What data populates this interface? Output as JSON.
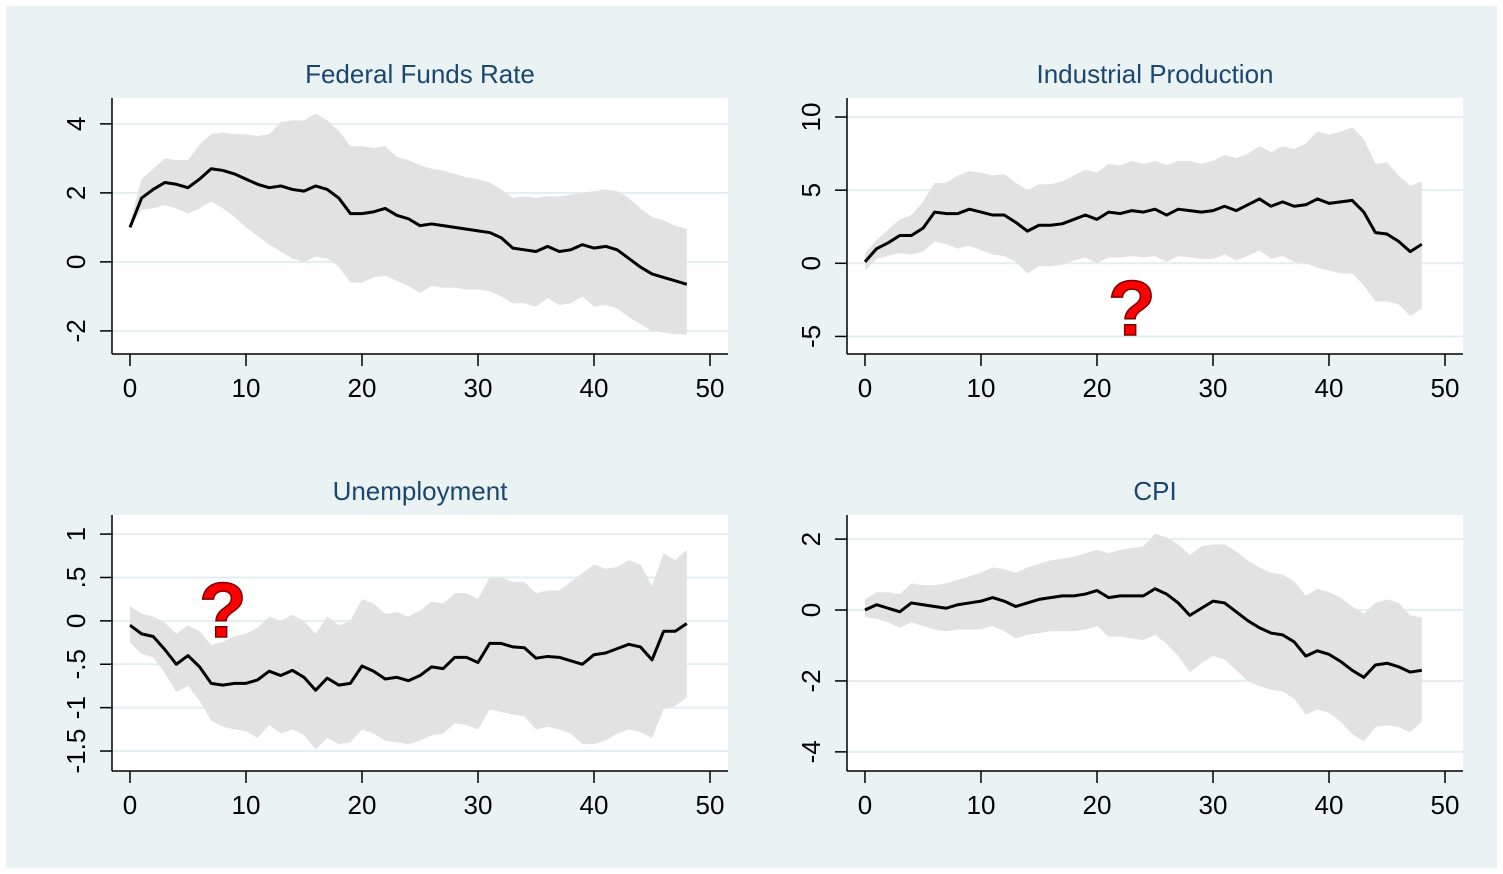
{
  "chart_data": [
    {
      "type": "line",
      "title": "Federal Funds Rate",
      "x": [
        0,
        1,
        2,
        3,
        4,
        5,
        6,
        7,
        8,
        9,
        10,
        11,
        12,
        13,
        14,
        15,
        16,
        17,
        18,
        19,
        20,
        21,
        22,
        23,
        24,
        25,
        26,
        27,
        28,
        29,
        30,
        31,
        32,
        33,
        34,
        35,
        36,
        37,
        38,
        39,
        40,
        41,
        42,
        43,
        44,
        45,
        46,
        47,
        48
      ],
      "series": [
        {
          "color": "#000000",
          "values": [
            1.0,
            1.85,
            2.1,
            2.3,
            2.25,
            2.15,
            2.4,
            2.7,
            2.65,
            2.55,
            2.4,
            2.25,
            2.15,
            2.2,
            2.1,
            2.05,
            2.2,
            2.1,
            1.85,
            1.4,
            1.4,
            1.45,
            1.55,
            1.35,
            1.25,
            1.05,
            1.1,
            1.05,
            1.0,
            0.95,
            0.9,
            0.85,
            0.7,
            0.4,
            0.35,
            0.3,
            0.45,
            0.3,
            0.35,
            0.5,
            0.4,
            0.45,
            0.35,
            0.1,
            -0.15,
            -0.35,
            -0.45,
            -0.55,
            -0.65
          ]
        }
      ],
      "band": {
        "color": "#e2e2e2",
        "upper": [
          1.1,
          2.4,
          2.7,
          3.0,
          2.95,
          2.95,
          3.4,
          3.7,
          3.75,
          3.7,
          3.7,
          3.65,
          3.7,
          4.05,
          4.1,
          4.1,
          4.3,
          4.1,
          3.8,
          3.35,
          3.35,
          3.3,
          3.35,
          3.05,
          2.95,
          2.8,
          2.7,
          2.65,
          2.55,
          2.45,
          2.4,
          2.3,
          2.1,
          1.85,
          1.9,
          1.85,
          1.9,
          1.9,
          1.95,
          2.0,
          2.05,
          2.1,
          2.05,
          1.85,
          1.55,
          1.3,
          1.2,
          1.05,
          0.95
        ],
        "lower": [
          1.0,
          1.5,
          1.55,
          1.65,
          1.55,
          1.4,
          1.55,
          1.75,
          1.55,
          1.3,
          1.0,
          0.75,
          0.5,
          0.3,
          0.1,
          0.0,
          0.15,
          0.1,
          -0.15,
          -0.6,
          -0.6,
          -0.45,
          -0.4,
          -0.55,
          -0.7,
          -0.9,
          -0.7,
          -0.75,
          -0.75,
          -0.8,
          -0.8,
          -0.85,
          -1.0,
          -1.2,
          -1.2,
          -1.3,
          -1.05,
          -1.25,
          -1.2,
          -1.0,
          -1.3,
          -1.25,
          -1.35,
          -1.6,
          -1.8,
          -2.0,
          -2.05,
          -2.1,
          -2.1
        ]
      },
      "xlim": [
        -1.55,
        51.55
      ],
      "xticks": [
        0,
        10,
        20,
        30,
        40,
        50
      ],
      "ylim": [
        -2.67,
        4.75
      ],
      "yticks": [
        -2,
        0,
        2,
        4
      ],
      "grid": true
    },
    {
      "type": "line",
      "title": "Industrial Production",
      "x": [
        0,
        1,
        2,
        3,
        4,
        5,
        6,
        7,
        8,
        9,
        10,
        11,
        12,
        13,
        14,
        15,
        16,
        17,
        18,
        19,
        20,
        21,
        22,
        23,
        24,
        25,
        26,
        27,
        28,
        29,
        30,
        31,
        32,
        33,
        34,
        35,
        36,
        37,
        38,
        39,
        40,
        41,
        42,
        43,
        44,
        45,
        46,
        47,
        48
      ],
      "series": [
        {
          "color": "#000000",
          "values": [
            0.1,
            1.0,
            1.4,
            1.9,
            1.9,
            2.4,
            3.5,
            3.4,
            3.4,
            3.7,
            3.5,
            3.3,
            3.3,
            2.8,
            2.2,
            2.6,
            2.6,
            2.7,
            3.0,
            3.3,
            3.0,
            3.5,
            3.4,
            3.6,
            3.5,
            3.7,
            3.3,
            3.7,
            3.6,
            3.5,
            3.6,
            3.9,
            3.6,
            4.0,
            4.4,
            3.9,
            4.2,
            3.9,
            4.0,
            4.4,
            4.1,
            4.2,
            4.3,
            3.5,
            2.1,
            2.0,
            1.5,
            0.8,
            1.3
          ]
        }
      ],
      "band": {
        "color": "#e2e2e2",
        "upper": [
          0.7,
          1.6,
          2.3,
          3.0,
          3.3,
          4.2,
          5.5,
          5.5,
          6.0,
          6.3,
          6.2,
          6.0,
          6.1,
          5.5,
          5.0,
          5.4,
          5.4,
          5.6,
          6.0,
          6.4,
          6.2,
          6.8,
          6.7,
          7.0,
          6.8,
          7.0,
          6.7,
          7.0,
          7.0,
          6.8,
          7.0,
          7.4,
          7.2,
          7.5,
          8.0,
          7.6,
          8.0,
          7.8,
          8.2,
          9.0,
          8.8,
          9.0,
          9.3,
          8.5,
          6.8,
          6.9,
          6.0,
          5.3,
          5.6
        ],
        "lower": [
          -0.5,
          0.3,
          0.5,
          0.7,
          0.6,
          0.8,
          1.5,
          1.3,
          1.0,
          1.2,
          0.9,
          0.6,
          0.5,
          0.1,
          -0.7,
          -0.2,
          -0.2,
          -0.1,
          0.2,
          0.4,
          0.0,
          0.4,
          0.4,
          0.5,
          0.4,
          0.5,
          0.1,
          0.5,
          0.4,
          0.3,
          0.3,
          0.6,
          0.2,
          0.5,
          0.9,
          0.3,
          0.5,
          0.1,
          0.0,
          -0.3,
          -0.5,
          -0.7,
          -0.7,
          -1.5,
          -2.6,
          -2.6,
          -2.8,
          -3.6,
          -3.1
        ]
      },
      "xlim": [
        -1.55,
        51.55
      ],
      "xticks": [
        0,
        10,
        20,
        30,
        40,
        50
      ],
      "ylim": [
        -6.2,
        11.3
      ],
      "yticks": [
        -5,
        0,
        5,
        10
      ],
      "grid": true,
      "annotations": [
        {
          "text": "?",
          "x": 23,
          "y": -3.5,
          "color": "#ff0000"
        }
      ]
    },
    {
      "type": "line",
      "title": "Unemployment",
      "x": [
        0,
        1,
        2,
        3,
        4,
        5,
        6,
        7,
        8,
        9,
        10,
        11,
        12,
        13,
        14,
        15,
        16,
        17,
        18,
        19,
        20,
        21,
        22,
        23,
        24,
        25,
        26,
        27,
        28,
        29,
        30,
        31,
        32,
        33,
        34,
        35,
        36,
        37,
        38,
        39,
        40,
        41,
        42,
        43,
        44,
        45,
        46,
        47,
        48
      ],
      "series": [
        {
          "color": "#000000",
          "values": [
            -0.05,
            -0.15,
            -0.18,
            -0.33,
            -0.5,
            -0.4,
            -0.53,
            -0.72,
            -0.74,
            -0.72,
            -0.72,
            -0.68,
            -0.58,
            -0.63,
            -0.57,
            -0.65,
            -0.8,
            -0.66,
            -0.74,
            -0.72,
            -0.52,
            -0.58,
            -0.67,
            -0.65,
            -0.69,
            -0.63,
            -0.53,
            -0.55,
            -0.42,
            -0.42,
            -0.48,
            -0.26,
            -0.26,
            -0.3,
            -0.31,
            -0.43,
            -0.41,
            -0.42,
            -0.46,
            -0.5,
            -0.39,
            -0.37,
            -0.32,
            -0.27,
            -0.3,
            -0.45,
            -0.12,
            -0.12,
            -0.03
          ]
        }
      ],
      "band": {
        "color": "#e2e2e2",
        "upper": [
          0.17,
          0.08,
          0.05,
          -0.02,
          -0.15,
          -0.05,
          -0.12,
          -0.28,
          -0.24,
          -0.18,
          -0.15,
          -0.08,
          0.05,
          0.0,
          0.07,
          0.0,
          -0.15,
          0.05,
          -0.05,
          0.0,
          0.25,
          0.2,
          0.08,
          0.1,
          0.05,
          0.12,
          0.22,
          0.2,
          0.32,
          0.32,
          0.25,
          0.5,
          0.5,
          0.45,
          0.45,
          0.32,
          0.35,
          0.35,
          0.45,
          0.55,
          0.65,
          0.6,
          0.62,
          0.7,
          0.65,
          0.4,
          0.78,
          0.7,
          0.82
        ],
        "lower": [
          -0.25,
          -0.38,
          -0.42,
          -0.6,
          -0.82,
          -0.75,
          -0.92,
          -1.15,
          -1.22,
          -1.25,
          -1.27,
          -1.35,
          -1.2,
          -1.3,
          -1.25,
          -1.32,
          -1.48,
          -1.35,
          -1.42,
          -1.4,
          -1.25,
          -1.3,
          -1.38,
          -1.4,
          -1.42,
          -1.38,
          -1.32,
          -1.3,
          -1.18,
          -1.2,
          -1.25,
          -1.02,
          -1.05,
          -1.08,
          -1.1,
          -1.25,
          -1.22,
          -1.25,
          -1.3,
          -1.42,
          -1.42,
          -1.38,
          -1.3,
          -1.25,
          -1.28,
          -1.35,
          -1.02,
          -0.98,
          -0.88
        ]
      },
      "xlim": [
        -1.55,
        51.55
      ],
      "xticks": [
        0,
        10,
        20,
        30,
        40,
        50
      ],
      "ylim": [
        -1.73,
        1.22
      ],
      "yticks": [
        {
          "value": -1.5,
          "label": "-1.5"
        },
        -1,
        {
          "value": -0.5,
          "label": "-.5"
        },
        0,
        {
          "value": 0.5,
          "label": ".5"
        },
        1
      ],
      "grid": true,
      "annotations": [
        {
          "text": "?",
          "x": 8,
          "y": 0.05,
          "color": "#ff0000"
        }
      ]
    },
    {
      "type": "line",
      "title": "CPI",
      "x": [
        0,
        1,
        2,
        3,
        4,
        5,
        6,
        7,
        8,
        9,
        10,
        11,
        12,
        13,
        14,
        15,
        16,
        17,
        18,
        19,
        20,
        21,
        22,
        23,
        24,
        25,
        26,
        27,
        28,
        29,
        30,
        31,
        32,
        33,
        34,
        35,
        36,
        37,
        38,
        39,
        40,
        41,
        42,
        43,
        44,
        45,
        46,
        47,
        48
      ],
      "series": [
        {
          "color": "#000000",
          "values": [
            0.0,
            0.15,
            0.05,
            -0.05,
            0.2,
            0.15,
            0.1,
            0.05,
            0.15,
            0.2,
            0.25,
            0.35,
            0.25,
            0.1,
            0.2,
            0.3,
            0.35,
            0.4,
            0.4,
            0.45,
            0.55,
            0.35,
            0.4,
            0.4,
            0.4,
            0.6,
            0.45,
            0.2,
            -0.15,
            0.05,
            0.25,
            0.2,
            -0.05,
            -0.3,
            -0.5,
            -0.65,
            -0.7,
            -0.9,
            -1.3,
            -1.15,
            -1.25,
            -1.45,
            -1.7,
            -1.9,
            -1.55,
            -1.5,
            -1.6,
            -1.75,
            -1.7
          ]
        }
      ],
      "band": {
        "color": "#e2e2e2",
        "upper": [
          0.3,
          0.5,
          0.5,
          0.45,
          0.75,
          0.7,
          0.7,
          0.75,
          0.85,
          0.95,
          1.05,
          1.2,
          1.15,
          1.05,
          1.2,
          1.3,
          1.4,
          1.45,
          1.5,
          1.6,
          1.7,
          1.6,
          1.7,
          1.75,
          1.8,
          2.15,
          2.05,
          1.85,
          1.55,
          1.8,
          1.85,
          1.85,
          1.65,
          1.4,
          1.2,
          1.05,
          1.0,
          0.8,
          0.4,
          0.6,
          0.5,
          0.35,
          0.1,
          -0.1,
          0.2,
          0.3,
          0.2,
          -0.15,
          -0.2
        ],
        "lower": [
          -0.2,
          -0.25,
          -0.35,
          -0.5,
          -0.35,
          -0.45,
          -0.55,
          -0.6,
          -0.55,
          -0.55,
          -0.55,
          -0.45,
          -0.6,
          -0.8,
          -0.7,
          -0.65,
          -0.6,
          -0.6,
          -0.6,
          -0.55,
          -0.45,
          -0.75,
          -0.75,
          -0.8,
          -0.85,
          -0.7,
          -0.95,
          -1.3,
          -1.75,
          -1.5,
          -1.3,
          -1.4,
          -1.7,
          -2.0,
          -2.15,
          -2.25,
          -2.3,
          -2.5,
          -2.95,
          -2.8,
          -2.9,
          -3.15,
          -3.5,
          -3.7,
          -3.3,
          -3.25,
          -3.3,
          -3.45,
          -3.15
        ]
      },
      "xlim": [
        -1.55,
        51.55
      ],
      "xticks": [
        0,
        10,
        20,
        30,
        40,
        50
      ],
      "ylim": [
        -4.54,
        2.68
      ],
      "yticks": [
        -4,
        -2,
        0,
        2
      ],
      "grid": true
    }
  ]
}
